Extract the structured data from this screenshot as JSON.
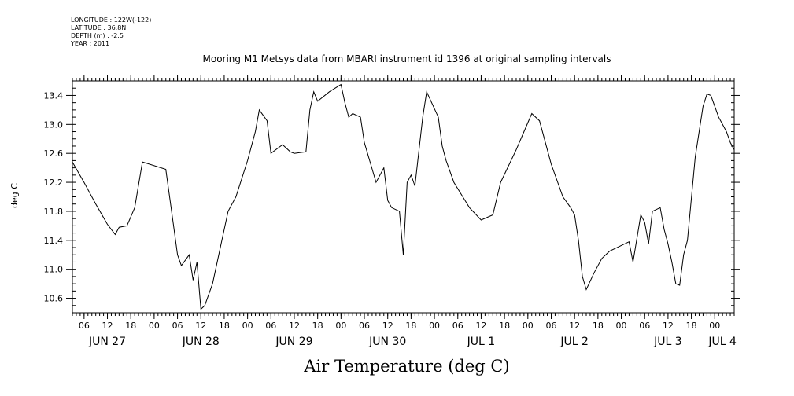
{
  "header": {
    "longitude": "LONGITUDE : 122W(-122)",
    "latitude": "LATITUDE : 36.8N",
    "depth": "DEPTH (m) : -2.5",
    "year": "YEAR : 2011"
  },
  "chart_data": {
    "type": "line",
    "title": "Mooring M1 Metsys data from MBARI instrument id 1396 at original sampling intervals",
    "xlabel": "Air Temperature (deg C)",
    "ylabel": "deg C",
    "ylim": [
      10.4,
      13.6
    ],
    "yticks": [
      "10.6",
      "11.0",
      "11.4",
      "11.8",
      "12.2",
      "12.6",
      "13.0",
      "13.4"
    ],
    "xlim": [
      "2011-06-27T03:00",
      "2011-07-04T05:00"
    ],
    "xticks_hours": [
      "06",
      "12",
      "18",
      "00",
      "06",
      "12",
      "18",
      "00",
      "06",
      "12",
      "18",
      "00",
      "06",
      "12",
      "18",
      "00",
      "06",
      "12",
      "18",
      "00",
      "06",
      "12",
      "18",
      "00",
      "06",
      "12",
      "18",
      "00"
    ],
    "xticks_days": [
      "JUN 27",
      "JUN 28",
      "JUN 29",
      "JUN 30",
      "JUL 1",
      "JUL 2",
      "JUL 3",
      "JUL 4"
    ],
    "series": [
      {
        "x": [
          "2011-06-27T03:00",
          "2011-06-27T06:00",
          "2011-06-27T09:00",
          "2011-06-27T12:00",
          "2011-06-27T14:00",
          "2011-06-27T15:00",
          "2011-06-27T17:00",
          "2011-06-27T19:00",
          "2011-06-27T21:00",
          "2011-06-28T03:00",
          "2011-06-28T05:00",
          "2011-06-28T06:00",
          "2011-06-28T07:00",
          "2011-06-28T09:00",
          "2011-06-28T10:00",
          "2011-06-28T11:00",
          "2011-06-28T12:00",
          "2011-06-28T13:00",
          "2011-06-28T15:00",
          "2011-06-28T17:00",
          "2011-06-28T19:00",
          "2011-06-28T21:00",
          "2011-06-29T00:00",
          "2011-06-29T02:00",
          "2011-06-29T03:00",
          "2011-06-29T05:00",
          "2011-06-29T06:00",
          "2011-06-29T09:00",
          "2011-06-29T11:00",
          "2011-06-29T12:00",
          "2011-06-29T15:00",
          "2011-06-29T16:00",
          "2011-06-29T17:00",
          "2011-06-29T18:00",
          "2011-06-29T21:00",
          "2011-06-30T00:00",
          "2011-06-30T01:00",
          "2011-06-30T02:00",
          "2011-06-30T03:00",
          "2011-06-30T05:00",
          "2011-06-30T06:00",
          "2011-06-30T09:00",
          "2011-06-30T11:00",
          "2011-06-30T12:00",
          "2011-06-30T13:00",
          "2011-06-30T15:00",
          "2011-06-30T16:00",
          "2011-06-30T17:00",
          "2011-06-30T18:00",
          "2011-06-30T19:00",
          "2011-06-30T21:00",
          "2011-06-30T22:00",
          "2011-07-01T01:00",
          "2011-07-01T02:00",
          "2011-07-01T03:00",
          "2011-07-01T05:00",
          "2011-07-01T09:00",
          "2011-07-01T12:00",
          "2011-07-01T15:00",
          "2011-07-01T17:00",
          "2011-07-01T21:00",
          "2011-07-01T23:00",
          "2011-07-02T01:00",
          "2011-07-02T03:00",
          "2011-07-02T06:00",
          "2011-07-02T09:00",
          "2011-07-02T11:00",
          "2011-07-02T12:00",
          "2011-07-02T13:00",
          "2011-07-02T14:00",
          "2011-07-02T15:00",
          "2011-07-02T17:00",
          "2011-07-02T19:00",
          "2011-07-02T21:00",
          "2011-07-03T02:00",
          "2011-07-03T03:00",
          "2011-07-03T05:00",
          "2011-07-03T06:00",
          "2011-07-03T07:00",
          "2011-07-03T08:00",
          "2011-07-03T10:00",
          "2011-07-03T11:00",
          "2011-07-03T12:00",
          "2011-07-03T13:00",
          "2011-07-03T14:00",
          "2011-07-03T15:00",
          "2011-07-03T16:00",
          "2011-07-03T17:00",
          "2011-07-03T19:00",
          "2011-07-03T21:00",
          "2011-07-03T22:00",
          "2011-07-03T23:00",
          "2011-07-04T00:00",
          "2011-07-04T01:00",
          "2011-07-04T02:00",
          "2011-07-04T03:00",
          "2011-07-04T04:00",
          "2011-07-04T05:00"
        ],
        "values": [
          12.48,
          12.2,
          11.9,
          11.62,
          11.48,
          11.58,
          11.6,
          11.85,
          12.48,
          12.38,
          11.6,
          11.2,
          11.05,
          11.2,
          10.85,
          11.1,
          10.45,
          10.5,
          10.8,
          11.3,
          11.8,
          12.0,
          12.5,
          12.9,
          13.2,
          13.05,
          12.6,
          12.72,
          12.62,
          12.6,
          12.62,
          13.2,
          13.45,
          13.32,
          13.45,
          13.55,
          13.3,
          13.1,
          13.15,
          13.1,
          12.75,
          12.2,
          12.4,
          11.95,
          11.85,
          11.8,
          11.2,
          12.2,
          12.3,
          12.15,
          13.1,
          13.45,
          13.1,
          12.7,
          12.5,
          12.2,
          11.85,
          11.68,
          11.75,
          12.2,
          12.65,
          12.9,
          13.15,
          13.05,
          12.45,
          12.0,
          11.85,
          11.75,
          11.4,
          10.9,
          10.72,
          10.95,
          11.15,
          11.25,
          11.38,
          11.1,
          11.75,
          11.65,
          11.35,
          11.8,
          11.85,
          11.55,
          11.35,
          11.1,
          10.8,
          10.78,
          11.2,
          11.4,
          12.55,
          13.25,
          13.42,
          13.4,
          13.25,
          13.1,
          13.0,
          12.9,
          12.75,
          12.65
        ]
      }
    ],
    "grid": false
  }
}
